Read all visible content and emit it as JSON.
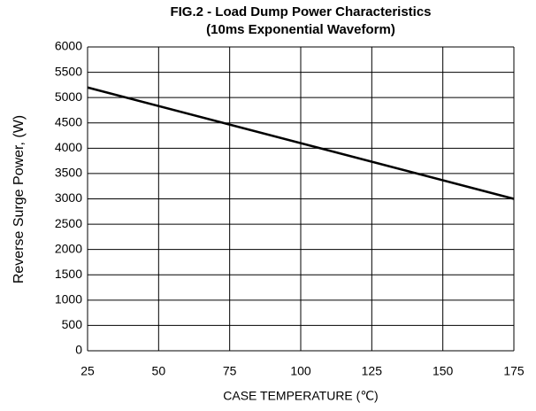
{
  "chart_data": {
    "type": "line",
    "title": [
      "FIG.2 - Load Dump Power Characteristics",
      "(10ms Exponential Waveform)"
    ],
    "xlabel": "CASE TEMPERATURE (℃)",
    "ylabel": "Reverse Surge Power, (W)",
    "x": [
      25,
      175
    ],
    "series": [
      {
        "color": "#000000",
        "values": [
          5200,
          3000
        ]
      }
    ],
    "xlim": [
      25,
      175
    ],
    "xticks": [
      25,
      50,
      75,
      100,
      125,
      150,
      175
    ],
    "ylim": [
      0,
      6000
    ],
    "yticks": [
      0,
      500,
      1000,
      1500,
      2000,
      2500,
      3000,
      3500,
      4000,
      4500,
      5000,
      5500,
      6000
    ],
    "grid": true
  }
}
